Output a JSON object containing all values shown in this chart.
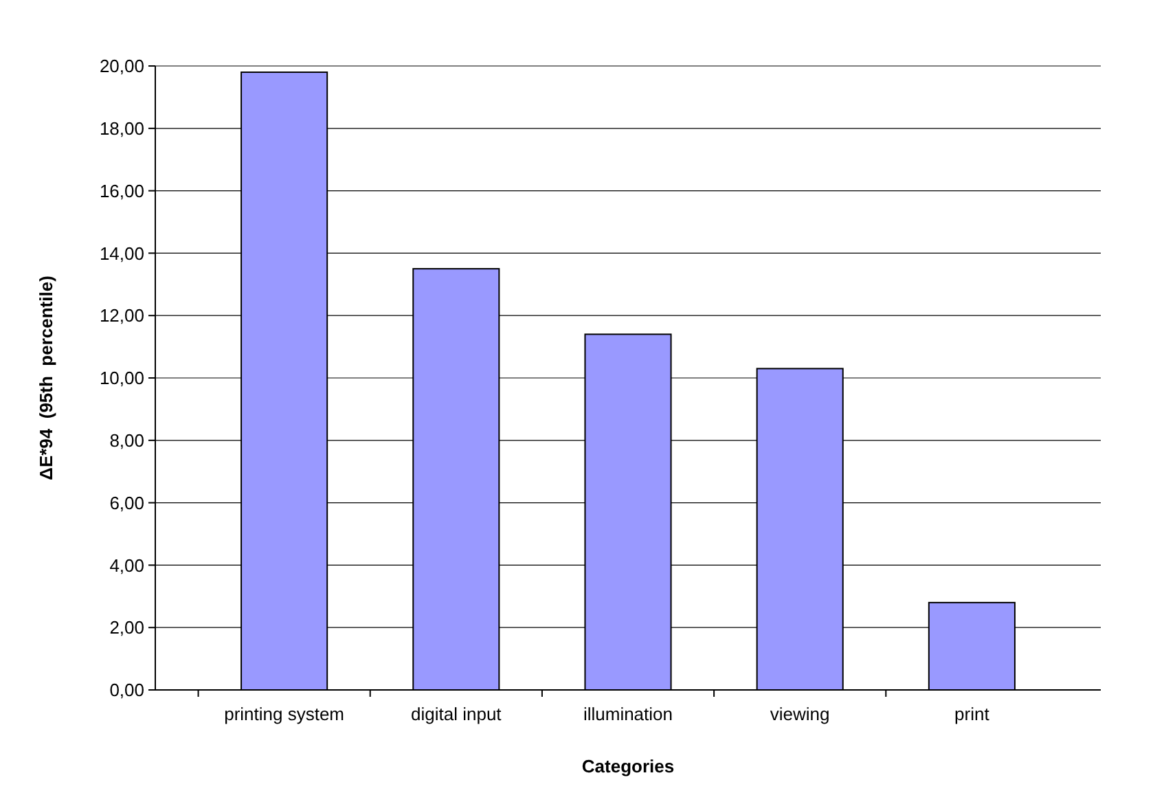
{
  "chart_data": {
    "type": "bar",
    "xlabel": "Categories",
    "ylabel": "ΔE*94  (95th  percentile)",
    "categories": [
      "printing system",
      "digital input",
      "illumination",
      "viewing",
      "print"
    ],
    "values": [
      19.8,
      13.5,
      11.4,
      10.3,
      2.8
    ],
    "color": "#9999ff",
    "ylim": [
      0,
      20
    ],
    "yticks": [
      {
        "value": 0,
        "label": "0,00"
      },
      {
        "value": 2,
        "label": "2,00"
      },
      {
        "value": 4,
        "label": "4,00"
      },
      {
        "value": 6,
        "label": "6,00"
      },
      {
        "value": 8,
        "label": "8,00"
      },
      {
        "value": 10,
        "label": "10,00"
      },
      {
        "value": 12,
        "label": "12,00"
      },
      {
        "value": 14,
        "label": "14,00"
      },
      {
        "value": 16,
        "label": "16,00"
      },
      {
        "value": 18,
        "label": "18,00"
      },
      {
        "value": 20,
        "label": "20,00"
      }
    ],
    "grid": "y"
  }
}
